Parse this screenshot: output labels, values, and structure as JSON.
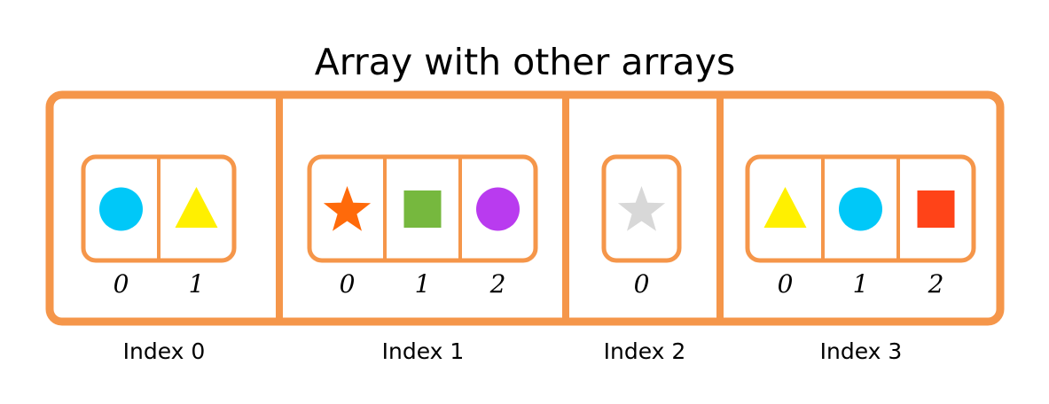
{
  "title": "Array with other arrays",
  "colors": {
    "outer_border": "#F5964A",
    "inner_border": "#F5964A",
    "text": "#000000"
  },
  "outer_array": {
    "slots": [
      {
        "label": "Index 0",
        "inner_array": [
          {
            "index": "0",
            "shape": "circle-icon",
            "color": "#00C8F8"
          },
          {
            "index": "1",
            "shape": "triangle-icon",
            "color": "#FFF000"
          }
        ]
      },
      {
        "label": "Index 1",
        "inner_array": [
          {
            "index": "0",
            "shape": "star-icon",
            "color": "#FF6A0A"
          },
          {
            "index": "1",
            "shape": "square-icon",
            "color": "#76B83E"
          },
          {
            "index": "2",
            "shape": "circle-icon",
            "color": "#B93BEF"
          }
        ]
      },
      {
        "label": "Index 2",
        "inner_array": [
          {
            "index": "0",
            "shape": "star-icon",
            "color": "#D8D8D8"
          }
        ]
      },
      {
        "label": "Index 3",
        "inner_array": [
          {
            "index": "0",
            "shape": "triangle-icon",
            "color": "#FFF000"
          },
          {
            "index": "1",
            "shape": "circle-icon",
            "color": "#00C8F8"
          },
          {
            "index": "2",
            "shape": "square-icon",
            "color": "#FF4318"
          }
        ]
      }
    ]
  }
}
